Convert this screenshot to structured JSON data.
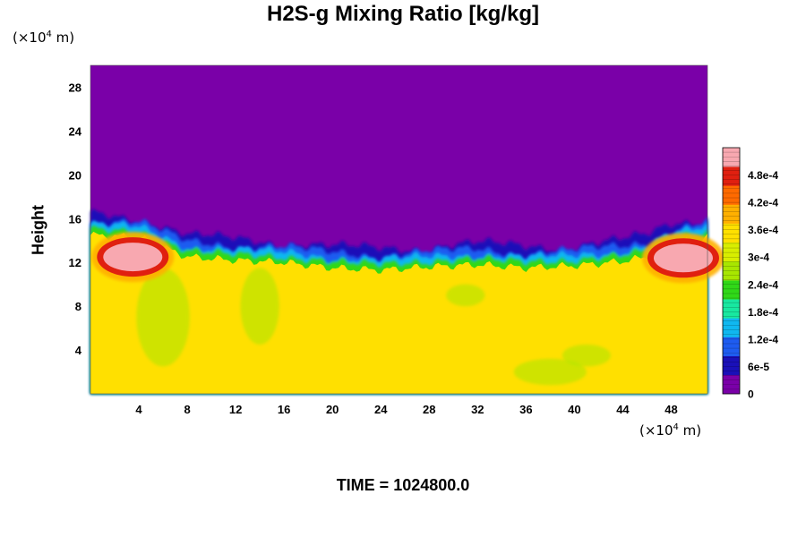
{
  "chart_data": {
    "type": "heatmap",
    "title": "H2S-g Mixing Ratio [kg/kg]",
    "ylabel": "Height",
    "x_unit": "(×10⁴ m)",
    "y_unit": "(×10⁴ m)",
    "x_range": [
      0,
      51
    ],
    "y_range": [
      0,
      30
    ],
    "x_ticks": [
      4,
      8,
      12,
      16,
      20,
      24,
      28,
      32,
      36,
      40,
      44,
      48
    ],
    "y_ticks": [
      4,
      8,
      12,
      16,
      20,
      24,
      28
    ],
    "colorbar": {
      "range": [
        0,
        0.00054
      ],
      "tick_values": [
        0,
        6e-05,
        0.00012,
        0.00018,
        0.00024,
        0.0003,
        0.00036,
        0.00042,
        0.00048
      ],
      "tick_labels": [
        "0",
        "6e-5",
        "1.2e-4",
        "1.8e-4",
        "2.4e-4",
        "3e-4",
        "3.6e-4",
        "4.2e-4",
        "4.8e-4"
      ],
      "colors": [
        "#7a00a8",
        "#1a10b8",
        "#1e5cf0",
        "#10b8f0",
        "#18e8a0",
        "#30d818",
        "#a8e600",
        "#d8ee00",
        "#ffe000",
        "#ffb000",
        "#ff6a00",
        "#e02010",
        "#f8a8b0"
      ]
    },
    "background_value": 0,
    "lower_layer_value": 0.00035,
    "interface_height": [
      14.5,
      14.3,
      12.5,
      12.2,
      12.0,
      11.5,
      11.3,
      11.6,
      11.8,
      11.5,
      11.7,
      12.1,
      12.5,
      13.6,
      14.3
    ],
    "interface_x": [
      0,
      4,
      8,
      12,
      16,
      20,
      24,
      28,
      32,
      36,
      40,
      44,
      46,
      48,
      51
    ],
    "patches": [
      {
        "x": 3.5,
        "y": 12.5,
        "value": 0.00054
      },
      {
        "x": 49,
        "y": 12.4,
        "value": 0.00054
      }
    ]
  },
  "time_label": "TIME = 1024800.0"
}
